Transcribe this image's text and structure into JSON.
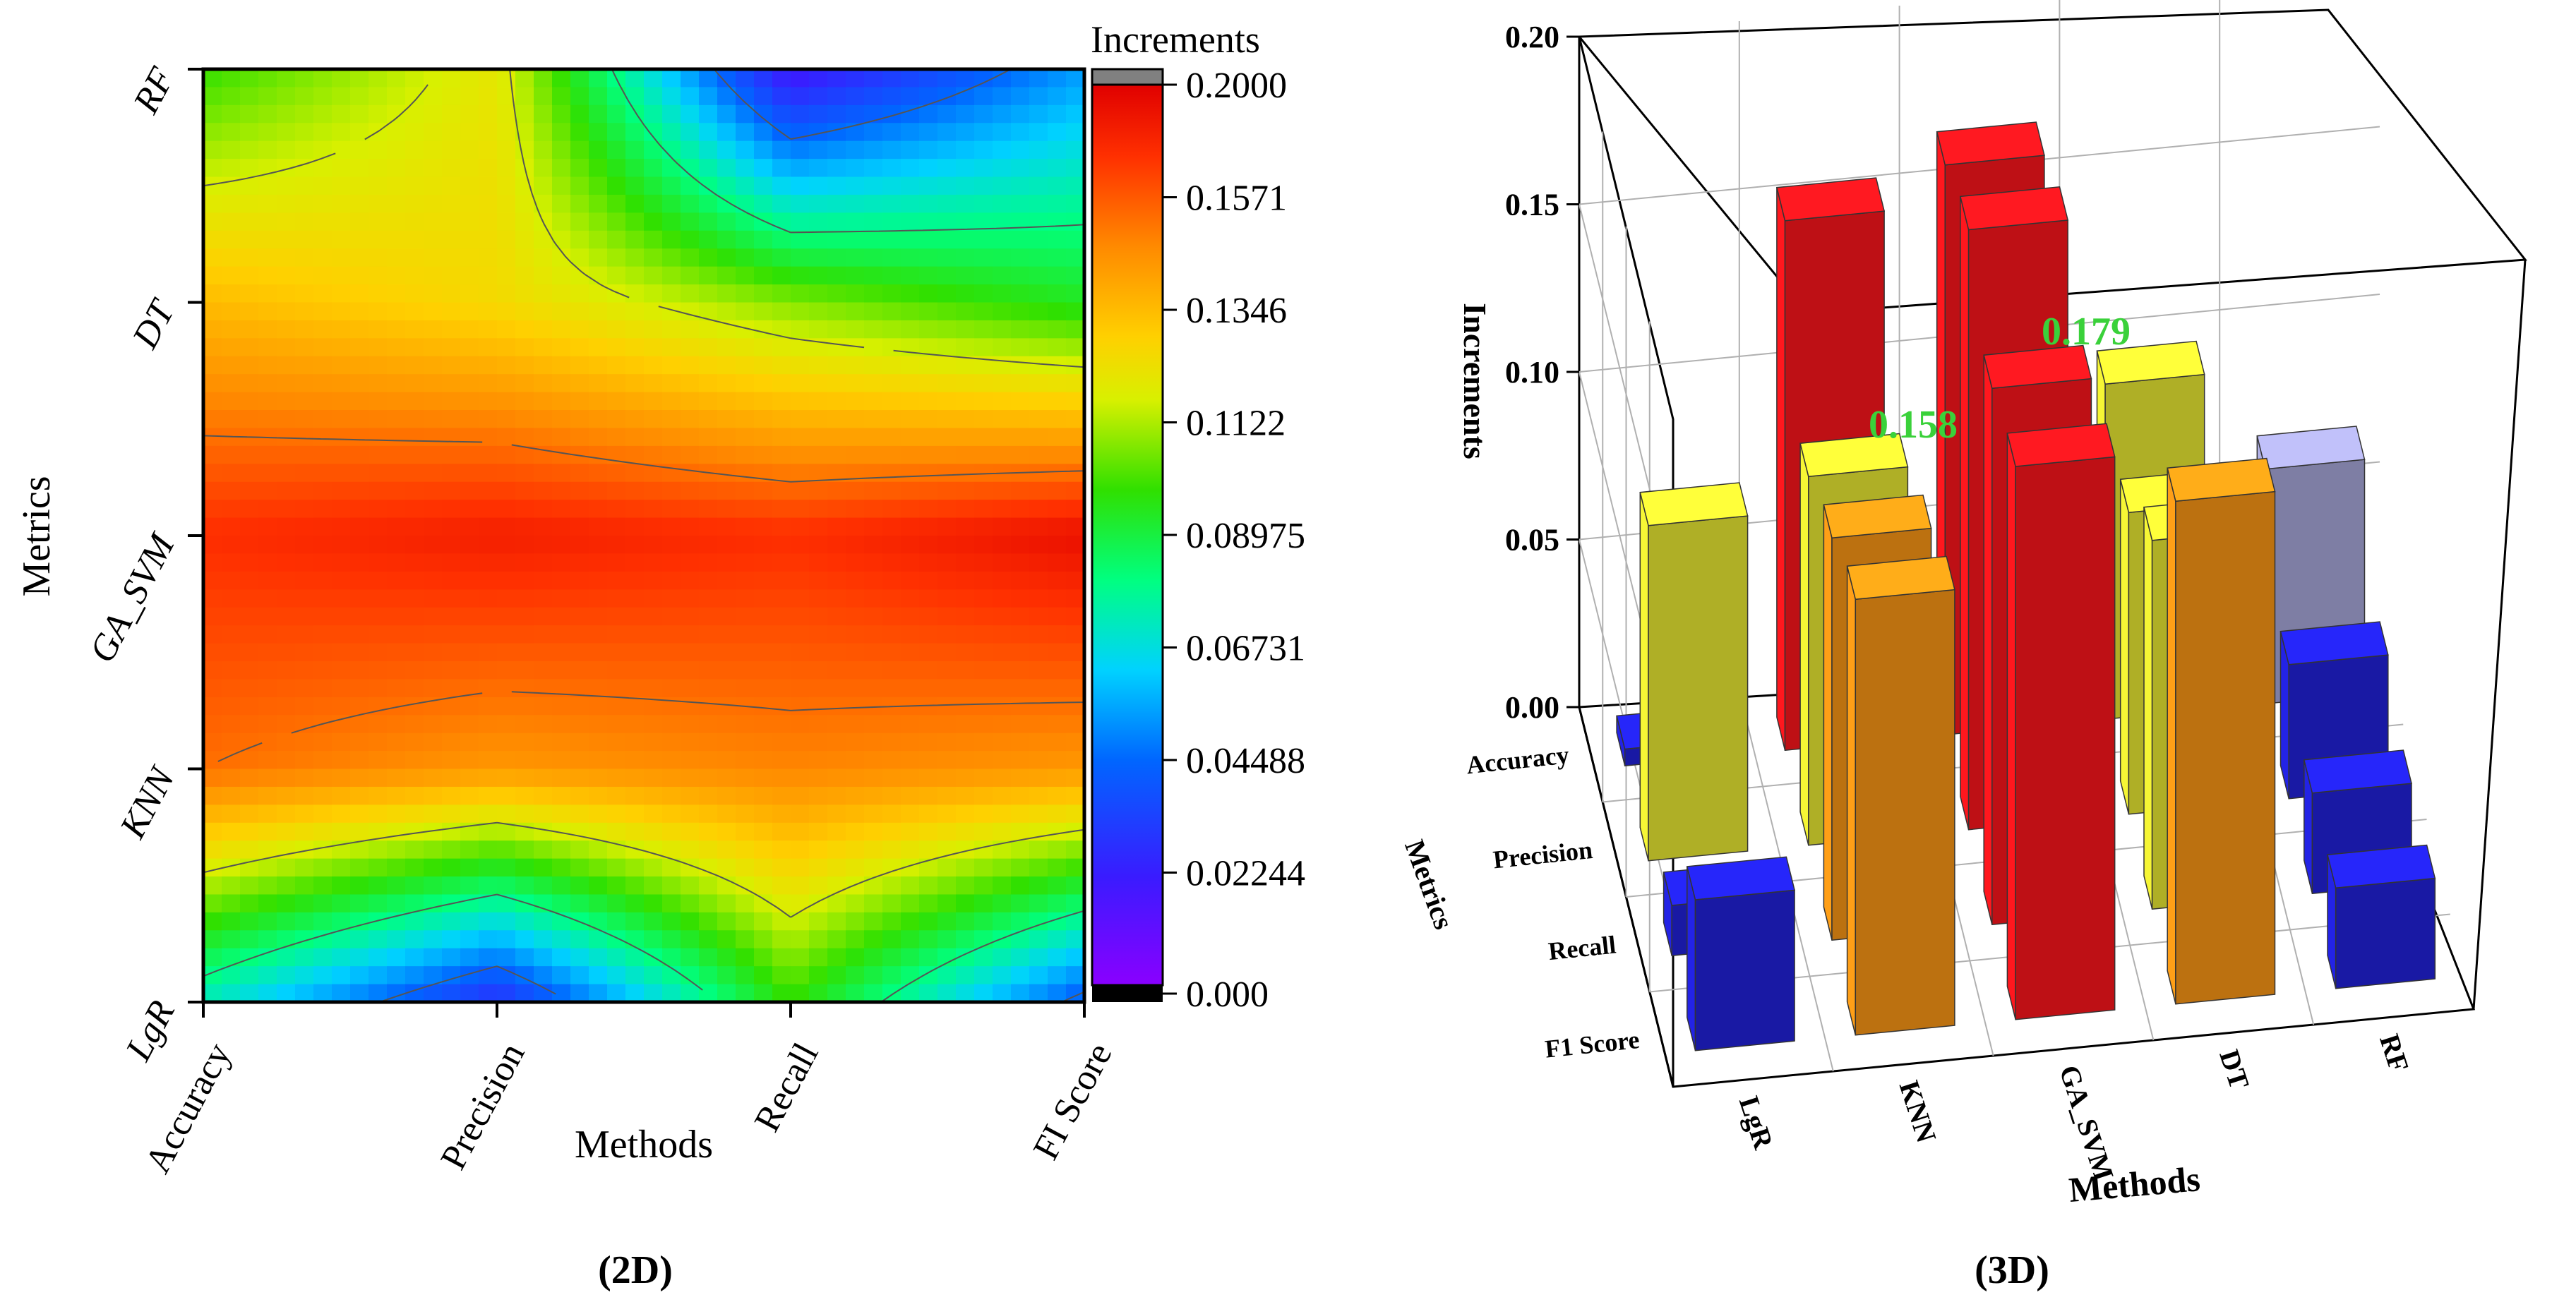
{
  "chart_data": [
    {
      "type": "heatmap",
      "panel_label": "(2D)",
      "xlabel": "Methods",
      "ylabel": "Metrics",
      "x_categories": [
        "Accuracy",
        "Precision",
        "Recall",
        "FI Score"
      ],
      "y_categories": [
        "LgR",
        "KNN",
        "GA_SVM",
        "DT",
        "RF"
      ],
      "colorbar_title": "Increments",
      "colorbar_ticks": [
        "0.2000",
        "0.1571",
        "0.1346",
        "0.1122",
        "0.08975",
        "0.06731",
        "0.04488",
        "0.02244",
        "0.000"
      ],
      "zlim": [
        0,
        0.2
      ],
      "values": [
        [
          0.08,
          0.03,
          0.11,
          0.045
        ],
        [
          0.17,
          0.16,
          0.165,
          0.16
        ],
        [
          0.185,
          0.19,
          0.185,
          0.195
        ],
        [
          0.15,
          0.14,
          0.12,
          0.105
        ],
        [
          0.11,
          0.135,
          0.02,
          0.06
        ]
      ],
      "grid": false
    },
    {
      "type": "bar",
      "subtype": "3d",
      "panel_label": "(3D)",
      "xlabel": "Methods",
      "ylabel": "Metrics",
      "zlabel": "Increments",
      "categories": [
        "LgR",
        "KNN",
        "GA_SVM",
        "DT",
        "RF"
      ],
      "depth_categories": [
        "Accuracy",
        "Precision",
        "Recall",
        "F1 Score"
      ],
      "zlim": [
        0,
        0.2
      ],
      "zticks": [
        "0.00",
        "0.05",
        "0.10",
        "0.15",
        "0.20"
      ],
      "series": [
        {
          "values": [
            0.045,
            0.13,
            0.165,
            0.15,
            0.03
          ]
        },
        {
          "values": [
            0.015,
            0.12,
            0.16,
            0.11,
            0.03
          ]
        },
        {
          "values": [
            0.1,
            0.11,
            0.179,
            0.09,
            0.04
          ]
        },
        {
          "values": [
            0.005,
            0.158,
            0.17,
            0.1,
            0.07
          ]
        }
      ],
      "annotations": [
        "0.158",
        "0.179"
      ],
      "grid": true
    }
  ],
  "colors": {
    "bar_orange": "#e58a14",
    "bar_red": "#e8141a",
    "bar_yellow": "#d6d62e",
    "bar_blue": "#1e1ec8",
    "bar_lavender": "#9a9ac8",
    "annotation": "#3ad13a"
  }
}
